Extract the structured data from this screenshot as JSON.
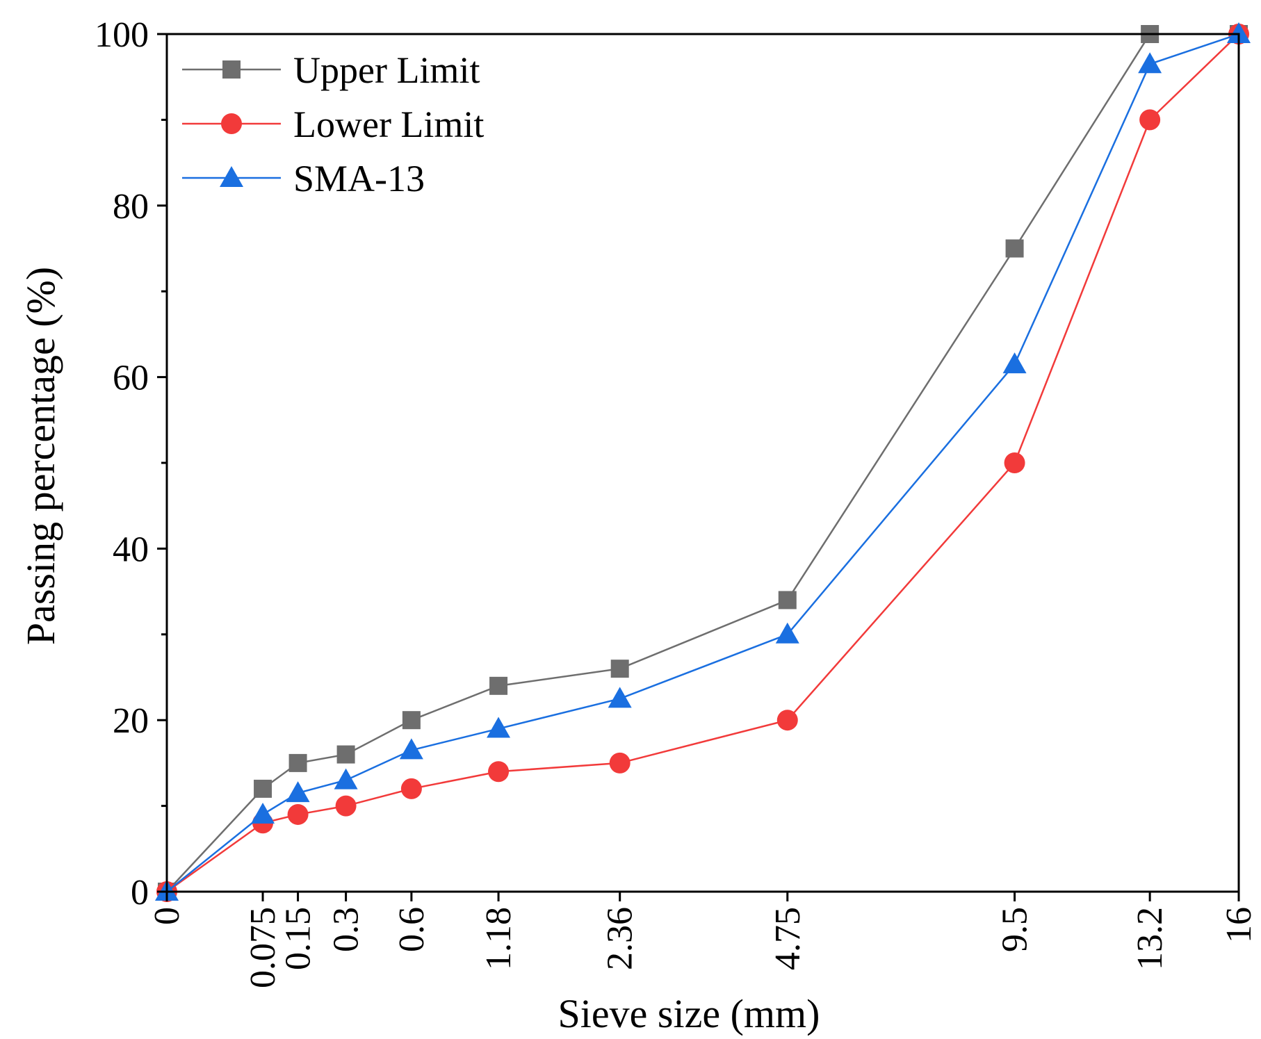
{
  "chart_data": {
    "type": "line",
    "title": "",
    "xlabel": "Sieve size (mm)",
    "ylabel": "Passing percentage (%)",
    "x_scale": "power-0.45 (gradation chart)",
    "xlim": [
      0,
      16
    ],
    "ylim": [
      0,
      100
    ],
    "x": [
      0,
      0.075,
      0.15,
      0.3,
      0.6,
      1.18,
      2.36,
      4.75,
      9.5,
      13.2,
      16
    ],
    "x_tick_labels": [
      "0",
      "0.075",
      "0.15",
      "0.3",
      "0.6",
      "1.18",
      "2.36",
      "4.75",
      "9.5",
      "13.2",
      "16"
    ],
    "y_ticks": [
      0,
      20,
      40,
      60,
      80,
      100
    ],
    "y_tick_labels": [
      "0",
      "20",
      "40",
      "60",
      "80",
      "100"
    ],
    "legend_position": "top-left",
    "series": [
      {
        "name": "Upper Limit",
        "color": "#6e6e6e",
        "marker": "square",
        "values": [
          0,
          12,
          15,
          16,
          20,
          24,
          26,
          34,
          75,
          100,
          100
        ]
      },
      {
        "name": "Lower Limit",
        "color": "#f23a3a",
        "marker": "circle",
        "values": [
          0,
          8,
          9,
          10,
          12,
          14,
          15,
          20,
          50,
          90,
          100
        ]
      },
      {
        "name": "SMA-13",
        "color": "#1a6fe0",
        "marker": "triangle",
        "values": [
          0,
          9,
          11.5,
          13,
          16.5,
          19,
          22.5,
          30,
          61.5,
          96.5,
          100
        ]
      }
    ]
  }
}
